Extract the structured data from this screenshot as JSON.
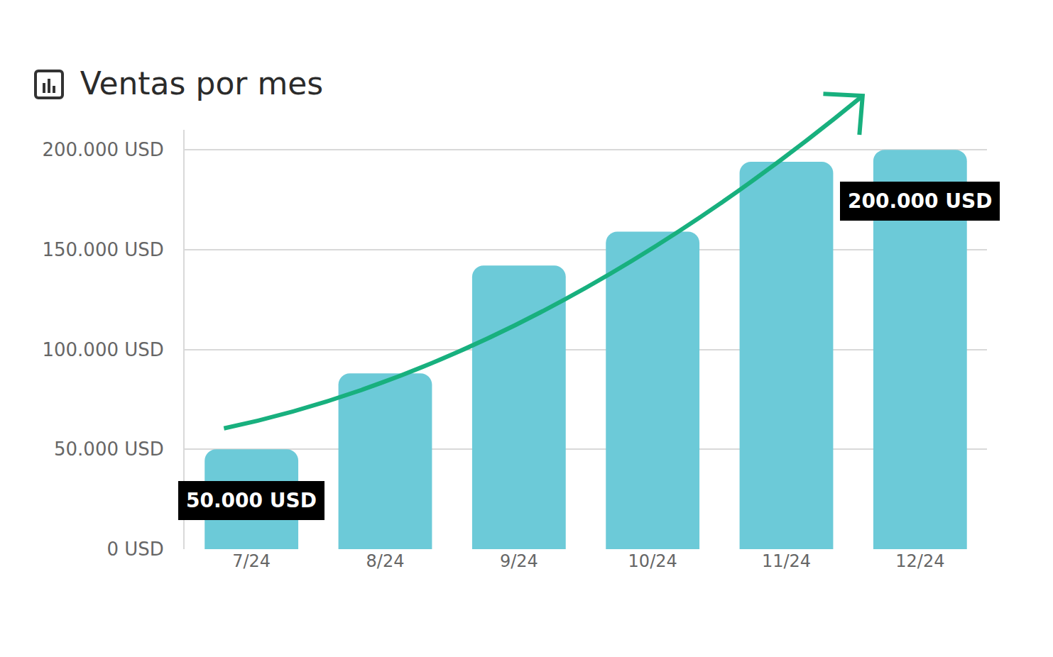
{
  "chart_data": {
    "type": "bar",
    "title": "Ventas por mes",
    "categories": [
      "7/24",
      "8/24",
      "9/24",
      "10/24",
      "11/24",
      "12/24"
    ],
    "values": [
      50000,
      88000,
      142000,
      159000,
      194000,
      200000
    ],
    "value_labels": [
      "50.000 USD",
      null,
      null,
      null,
      null,
      "200.000 USD"
    ],
    "data_labels": true,
    "color": "#6ccad8",
    "ylim": [
      0,
      210000
    ],
    "yticks": [
      {
        "value": 0,
        "label": "0 USD"
      },
      {
        "value": 50000,
        "label": "50.000 USD"
      },
      {
        "value": 100000,
        "label": "100.000 USD"
      },
      {
        "value": 150000,
        "label": "150.000 USD"
      },
      {
        "value": 200000,
        "label": "200.000 USD"
      }
    ],
    "grid": true
  }
}
